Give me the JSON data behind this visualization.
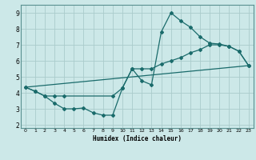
{
  "xlabel": "Humidex (Indice chaleur)",
  "xlim": [
    -0.5,
    23.5
  ],
  "ylim": [
    1.8,
    9.5
  ],
  "xticks": [
    0,
    1,
    2,
    3,
    4,
    5,
    6,
    7,
    8,
    9,
    10,
    11,
    12,
    13,
    14,
    15,
    16,
    17,
    18,
    19,
    20,
    21,
    22,
    23
  ],
  "yticks": [
    2,
    3,
    4,
    5,
    6,
    7,
    8,
    9
  ],
  "bg_color": "#cce8e8",
  "line_color": "#1a6b6b",
  "grid_color": "#aacccc",
  "line1_x": [
    0,
    1,
    2,
    3,
    4,
    5,
    6,
    7,
    8,
    9,
    10,
    11,
    12,
    13,
    14,
    15,
    16,
    17,
    18,
    19,
    20,
    21,
    22,
    23
  ],
  "line1_y": [
    4.35,
    4.1,
    3.8,
    3.35,
    3.0,
    3.0,
    3.05,
    2.75,
    2.6,
    2.6,
    4.3,
    5.5,
    4.75,
    4.5,
    7.8,
    9.0,
    8.5,
    8.1,
    7.5,
    7.1,
    7.05,
    6.9,
    6.6,
    5.7
  ],
  "line2_x": [
    0,
    1,
    2,
    3,
    4,
    9,
    10,
    11,
    12,
    13,
    14,
    15,
    16,
    17,
    18,
    19,
    20,
    21,
    22,
    23
  ],
  "line2_y": [
    4.35,
    4.1,
    3.8,
    3.8,
    3.8,
    3.8,
    4.3,
    5.5,
    5.5,
    5.5,
    5.8,
    6.0,
    6.2,
    6.5,
    6.7,
    7.0,
    7.0,
    6.9,
    6.6,
    5.7
  ],
  "line3_x": [
    0,
    23
  ],
  "line3_y": [
    4.35,
    5.7
  ]
}
